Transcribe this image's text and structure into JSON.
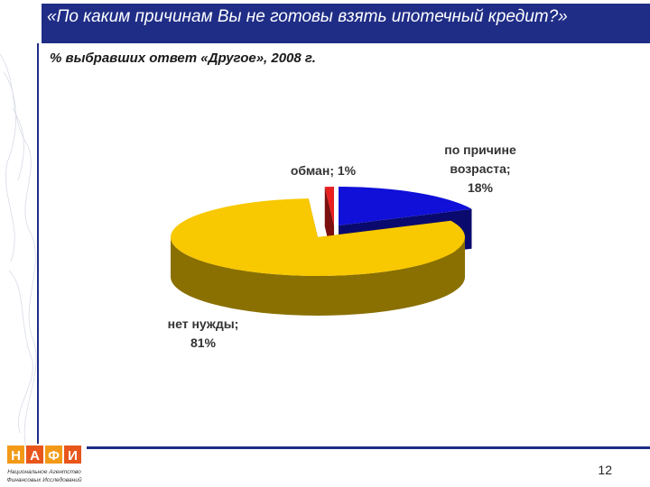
{
  "slide": {
    "title": "«По каким причинам Вы не готовы взять ипотечный кредит?»",
    "subtitle": "% выбравших ответ «Другое», 2008 г.",
    "page_number": "12"
  },
  "logo": {
    "letters": "НАФИ",
    "tagline_line1": "Национальное Агентство",
    "tagline_line2": "Финансовых Исследований"
  },
  "colors": {
    "accent": "#1f2d86",
    "slice_age": "#1010d8",
    "slice_age_side": "#0a0a6e",
    "slice_none": "#f8c800",
    "slice_none_side": "#8a7000",
    "slice_fraud": "#e82020",
    "slice_fraud_side": "#7a1010"
  },
  "chart_data": {
    "type": "pie",
    "title": "«По каким причинам Вы не готовы взять ипотечный кредит?»",
    "subtitle": "% выбравших ответ «Другое», 2008 г.",
    "slices": [
      {
        "label": "по причине возраста",
        "value": 18,
        "value_label": "18%"
      },
      {
        "label": "нет нужды",
        "value": 81,
        "value_label": "81%"
      },
      {
        "label": "обман",
        "value": 1,
        "value_label": "1%"
      }
    ],
    "legend": "none",
    "style": "3d-exploded"
  }
}
